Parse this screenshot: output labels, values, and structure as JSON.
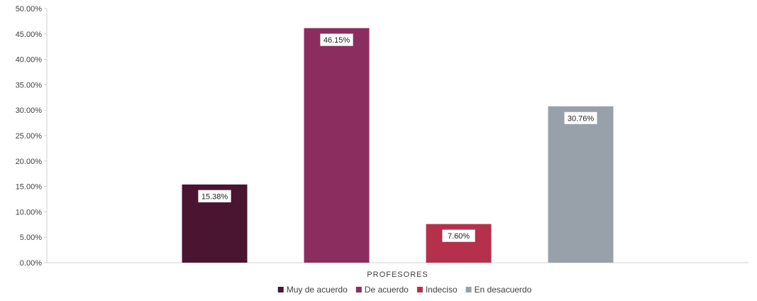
{
  "chart_data": {
    "type": "bar",
    "categories": [
      "PROFESORES"
    ],
    "series": [
      {
        "name": "Muy de acuerdo",
        "values": [
          15.38
        ],
        "label": "15.38%",
        "color": "#4a1530"
      },
      {
        "name": "De acuerdo",
        "values": [
          46.15
        ],
        "label": "46.15%",
        "color": "#8b2d5e"
      },
      {
        "name": "Indeciso",
        "values": [
          7.6
        ],
        "label": "7.60%",
        "color": "#b5304b"
      },
      {
        "name": "En desacuerdo",
        "values": [
          30.76
        ],
        "label": "30.76%",
        "color": "#98a0aa"
      }
    ],
    "yticks": [
      "0.00%",
      "5.00%",
      "10.00%",
      "15.00%",
      "20.00%",
      "25.00%",
      "30.00%",
      "35.00%",
      "40.00%",
      "45.00%",
      "50.00%"
    ],
    "ylim": [
      0,
      50
    ],
    "grid": false,
    "legend_position": "bottom"
  }
}
